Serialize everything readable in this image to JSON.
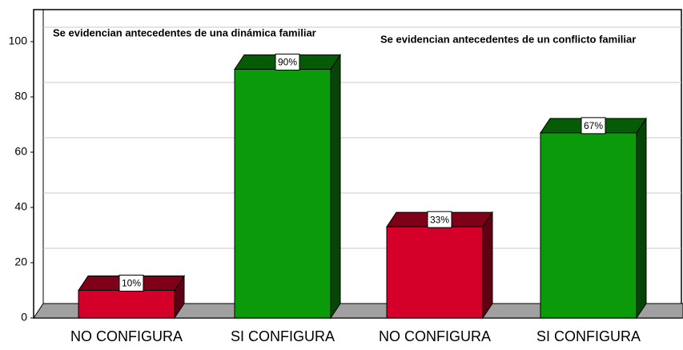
{
  "chart_data": {
    "type": "bar3d",
    "annotations": [
      "Se evidencian antecedentes de una dinámica familiar",
      "Se evidencian antecedentes de un conflicto familiar"
    ],
    "categories": [
      "NO CONFIGURA",
      "SI CONFIGURA",
      "NO CONFIGURA",
      "SI CONFIGURA"
    ],
    "values": [
      10,
      90,
      33,
      67
    ],
    "value_labels": [
      "10%",
      "90%",
      "33%",
      "67%"
    ],
    "colors": [
      "#d4002a",
      "#0a9a0a",
      "#d4002a",
      "#0a9a0a"
    ],
    "ylim": [
      0,
      100
    ],
    "yticks": [
      0,
      20,
      40,
      60,
      80,
      100
    ],
    "grid": true
  }
}
